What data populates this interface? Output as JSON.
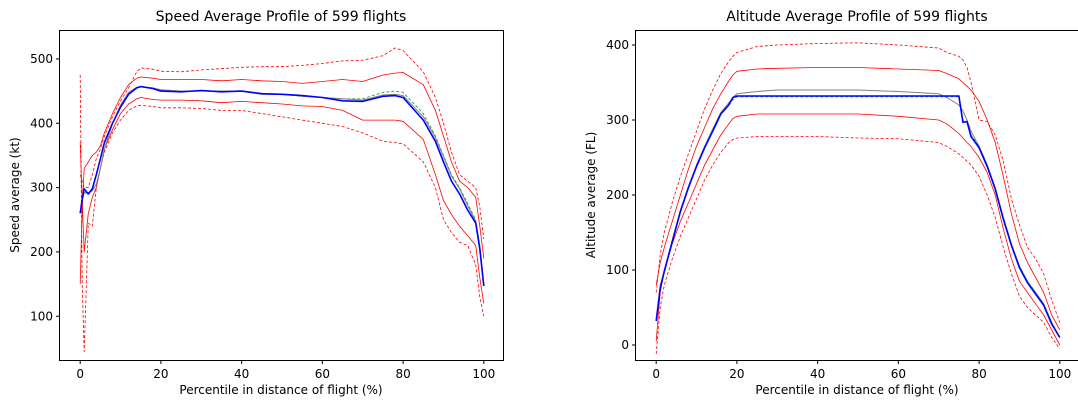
{
  "chart_data": [
    {
      "type": "line",
      "title": "Speed Average Profile of 599 flights",
      "xlabel": "Percentile in distance of flight (%)",
      "ylabel": "Speed average (kt)",
      "xlim": [
        -5,
        105
      ],
      "ylim": [
        32,
        545
      ],
      "xticks": [
        0,
        20,
        40,
        60,
        80,
        100
      ],
      "yticks": [
        100,
        200,
        300,
        400,
        500
      ],
      "grid": false,
      "x": [
        0,
        0.5,
        1,
        2,
        3,
        4,
        5,
        6,
        8,
        10,
        12,
        14,
        15,
        18,
        20,
        25,
        30,
        35,
        40,
        45,
        50,
        55,
        60,
        65,
        70,
        75,
        78,
        80,
        85,
        88,
        90,
        92,
        94,
        96,
        98,
        99,
        100
      ],
      "series": [
        {
          "color": "#ff0000",
          "style": "dashed",
          "width": 0.8,
          "values": [
            475,
            150,
            45,
            245,
            240,
            300,
            330,
            355,
            385,
            405,
            420,
            427,
            428,
            426,
            424,
            424,
            423,
            420,
            420,
            415,
            410,
            405,
            400,
            395,
            385,
            372,
            370,
            368,
            340,
            300,
            250,
            230,
            215,
            210,
            180,
            130,
            100
          ]
        },
        {
          "color": "#ff0000",
          "style": "solid",
          "width": 0.8,
          "values": [
            370,
            280,
            200,
            260,
            285,
            300,
            330,
            360,
            390,
            415,
            430,
            438,
            440,
            437,
            436,
            436,
            435,
            432,
            434,
            432,
            430,
            427,
            426,
            420,
            405,
            405,
            405,
            403,
            375,
            320,
            280,
            258,
            240,
            225,
            210,
            160,
            120
          ]
        },
        {
          "color": "#ff0000",
          "style": "solid",
          "width": 0.8,
          "values": [
            150,
            270,
            330,
            340,
            350,
            355,
            365,
            385,
            415,
            440,
            460,
            470,
            472,
            470,
            468,
            468,
            468,
            466,
            468,
            466,
            465,
            462,
            465,
            468,
            465,
            475,
            478,
            479,
            460,
            420,
            380,
            340,
            310,
            300,
            285,
            240,
            190
          ]
        },
        {
          "color": "#ff0000",
          "style": "dashed",
          "width": 0.8,
          "values": [
            320,
            310,
            300,
            300,
            320,
            345,
            360,
            380,
            410,
            435,
            455,
            480,
            486,
            484,
            481,
            480,
            483,
            485,
            487,
            488,
            488,
            490,
            493,
            497,
            498,
            505,
            517,
            513,
            480,
            440,
            400,
            355,
            320,
            310,
            300,
            270,
            220
          ]
        },
        {
          "color": "#2ca02c",
          "style": "dashed",
          "width": 0.9,
          "values": [
            262,
            280,
            292,
            292,
            295,
            305,
            330,
            360,
            400,
            428,
            448,
            456,
            457,
            455,
            452,
            450,
            450,
            450,
            450,
            445,
            445,
            442,
            440,
            438,
            438,
            448,
            450,
            448,
            415,
            380,
            350,
            320,
            300,
            275,
            250,
            210,
            150
          ]
        },
        {
          "color": "#808080",
          "style": "solid",
          "width": 1.0,
          "values": [
            262,
            280,
            292,
            292,
            295,
            305,
            330,
            360,
            400,
            428,
            448,
            456,
            457,
            455,
            452,
            450,
            450,
            450,
            450,
            445,
            445,
            442,
            440,
            438,
            436,
            444,
            445,
            443,
            410,
            378,
            348,
            318,
            298,
            272,
            248,
            208,
            150
          ]
        },
        {
          "color": "#0000ff",
          "style": "solid",
          "width": 1.6,
          "values": [
            260,
            282,
            298,
            290,
            298,
            320,
            345,
            370,
            400,
            425,
            445,
            455,
            457,
            454,
            450,
            449,
            451,
            449,
            450,
            446,
            445,
            443,
            440,
            435,
            434,
            442,
            443,
            440,
            405,
            372,
            340,
            310,
            290,
            265,
            245,
            205,
            147
          ]
        }
      ]
    },
    {
      "type": "line",
      "title": "Altitude Average Profile of 599 flights",
      "xlabel": "Percentile in distance of flight (%)",
      "ylabel": "Altitude average (FL)",
      "xlim": [
        -5,
        105
      ],
      "ylim": [
        -20,
        420
      ],
      "xticks": [
        0,
        20,
        40,
        60,
        80,
        100
      ],
      "yticks": [
        0,
        100,
        200,
        300,
        400
      ],
      "grid": false,
      "x": [
        0,
        1,
        2,
        4,
        6,
        8,
        10,
        12,
        14,
        16,
        18,
        19,
        20,
        25,
        30,
        40,
        50,
        60,
        70,
        72,
        75,
        76,
        77,
        78,
        80,
        82,
        84,
        86,
        88,
        90,
        92,
        94,
        96,
        98,
        100
      ],
      "series": [
        {
          "color": "#ff0000",
          "style": "dashed",
          "width": 0.8,
          "values": [
            -12,
            50,
            80,
            115,
            145,
            170,
            195,
            220,
            240,
            257,
            270,
            274,
            276,
            278,
            278,
            278,
            276,
            275,
            270,
            265,
            255,
            250,
            245,
            240,
            225,
            200,
            170,
            130,
            95,
            65,
            50,
            40,
            30,
            10,
            -5
          ]
        },
        {
          "color": "#ff0000",
          "style": "solid",
          "width": 0.8,
          "values": [
            5,
            70,
            100,
            135,
            165,
            190,
            215,
            240,
            260,
            280,
            295,
            302,
            305,
            308,
            308,
            308,
            308,
            305,
            300,
            295,
            282,
            276,
            270,
            265,
            250,
            230,
            200,
            155,
            115,
            85,
            70,
            55,
            40,
            20,
            0
          ]
        },
        {
          "color": "#ff0000",
          "style": "solid",
          "width": 0.8,
          "values": [
            80,
            110,
            130,
            165,
            200,
            235,
            265,
            290,
            315,
            335,
            352,
            360,
            365,
            368,
            369,
            370,
            370,
            368,
            366,
            362,
            355,
            350,
            345,
            340,
            325,
            300,
            270,
            225,
            175,
            135,
            110,
            90,
            70,
            40,
            20
          ]
        },
        {
          "color": "#ff0000",
          "style": "dashed",
          "width": 0.8,
          "values": [
            70,
            120,
            150,
            190,
            225,
            255,
            285,
            315,
            340,
            362,
            378,
            385,
            390,
            398,
            400,
            402,
            403,
            400,
            396,
            390,
            385,
            380,
            370,
            350,
            300,
            298,
            280,
            245,
            195,
            160,
            130,
            115,
            95,
            60,
            30
          ]
        },
        {
          "color": "#808080",
          "style": "solid",
          "width": 1.0,
          "values": [
            35,
            80,
            100,
            140,
            180,
            212,
            240,
            265,
            288,
            310,
            323,
            330,
            335,
            338,
            340,
            340,
            340,
            338,
            335,
            330,
            320,
            312,
            300,
            285,
            265,
            240,
            210,
            170,
            135,
            105,
            85,
            70,
            55,
            30,
            10
          ]
        },
        {
          "color": "#2ca02c",
          "style": "dashed",
          "width": 0.9,
          "values": [
            32,
            75,
            98,
            138,
            178,
            210,
            238,
            263,
            285,
            307,
            320,
            327,
            331,
            331,
            331,
            331,
            331,
            331,
            331,
            331,
            331,
            300,
            298,
            280,
            265,
            240,
            210,
            170,
            135,
            105,
            85,
            70,
            55,
            30,
            10
          ]
        },
        {
          "color": "#0000ff",
          "style": "solid",
          "width": 1.6,
          "values": [
            32,
            75,
            98,
            138,
            178,
            210,
            238,
            263,
            285,
            308,
            320,
            330,
            332,
            332,
            332,
            332,
            332,
            332,
            332,
            332,
            332,
            297,
            298,
            278,
            263,
            238,
            208,
            168,
            133,
            103,
            83,
            68,
            53,
            28,
            10
          ]
        }
      ]
    }
  ]
}
